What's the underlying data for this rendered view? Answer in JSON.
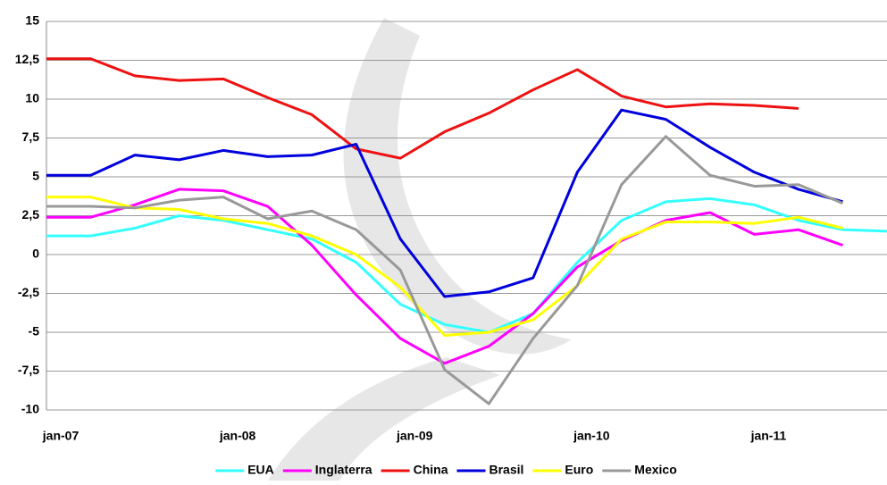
{
  "chart_data": {
    "type": "line",
    "categories": [
      "jan-07",
      null,
      null,
      null,
      "jan-08",
      null,
      null,
      null,
      "jan-09",
      null,
      null,
      null,
      "jan-10",
      null,
      null,
      null,
      "jan-11",
      null,
      null,
      null
    ],
    "series": [
      {
        "name": "EUA",
        "color": "#33ffff",
        "values": [
          1.2,
          1.2,
          1.7,
          2.5,
          2.2,
          1.6,
          1.0,
          -0.5,
          -3.2,
          -4.5,
          -5.0,
          -3.8,
          -0.5,
          2.2,
          3.4,
          3.6,
          3.2,
          2.2,
          1.6,
          1.5
        ]
      },
      {
        "name": "Inglaterra",
        "color": "#ff00ff",
        "values": [
          2.4,
          2.4,
          3.2,
          4.2,
          4.1,
          3.1,
          0.6,
          -2.6,
          -5.4,
          -7.0,
          -5.9,
          -3.8,
          -0.8,
          0.9,
          2.2,
          2.7,
          1.3,
          1.6,
          0.6,
          null
        ]
      },
      {
        "name": "China",
        "color": "#ee1111",
        "values": [
          12.6,
          12.6,
          11.5,
          11.2,
          11.3,
          10.1,
          9.0,
          6.8,
          6.2,
          7.9,
          9.1,
          10.6,
          11.9,
          10.2,
          9.5,
          9.7,
          9.6,
          9.4,
          null,
          null
        ]
      },
      {
        "name": "Brasil",
        "color": "#0000dd",
        "values": [
          5.1,
          5.1,
          6.4,
          6.1,
          6.7,
          6.3,
          6.4,
          7.1,
          1.0,
          -2.7,
          -2.4,
          -1.5,
          5.3,
          9.3,
          8.7,
          6.9,
          5.3,
          4.2,
          3.4,
          null
        ]
      },
      {
        "name": "Euro",
        "color": "#ffff00",
        "values": [
          3.7,
          3.7,
          3.0,
          2.9,
          2.3,
          2.0,
          1.2,
          0.0,
          -2.1,
          -5.2,
          -5.0,
          -4.2,
          -2.0,
          1.0,
          2.1,
          2.1,
          2.0,
          2.4,
          1.7,
          null
        ]
      },
      {
        "name": "Mexico",
        "color": "#999999",
        "values": [
          3.1,
          3.1,
          3.0,
          3.5,
          3.7,
          2.3,
          2.8,
          1.6,
          -1.0,
          -7.4,
          -9.6,
          -5.4,
          -2.0,
          4.5,
          7.6,
          5.1,
          4.4,
          4.5,
          3.3,
          null
        ]
      }
    ],
    "ylim": [
      -10,
      15
    ],
    "yticks": [
      {
        "value": -10,
        "label": "-10"
      },
      {
        "value": -7.5,
        "label": "-7,5"
      },
      {
        "value": -5,
        "label": "-5"
      },
      {
        "value": -2.5,
        "label": "-2,5"
      },
      0,
      {
        "value": 2.5,
        "label": "2,5"
      },
      5,
      {
        "value": 7.5,
        "label": "7,5"
      },
      10,
      {
        "value": 12.5,
        "label": "12,5"
      },
      15
    ],
    "grid": true,
    "legend": "bottom"
  }
}
